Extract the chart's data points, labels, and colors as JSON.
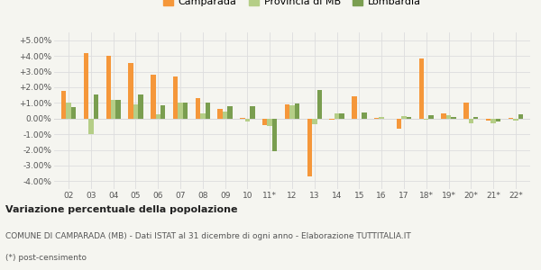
{
  "categories": [
    "02",
    "03",
    "04",
    "05",
    "06",
    "07",
    "08",
    "09",
    "10",
    "11*",
    "12",
    "13",
    "14",
    "15",
    "16",
    "17",
    "18*",
    "19*",
    "20*",
    "21*",
    "22*"
  ],
  "camparada": [
    1.75,
    4.2,
    4.0,
    3.55,
    2.8,
    2.7,
    1.3,
    0.6,
    0.05,
    -0.4,
    0.9,
    -3.7,
    -0.05,
    1.4,
    0.05,
    -0.65,
    3.85,
    0.35,
    1.0,
    -0.15,
    0.05
  ],
  "provincia_mb": [
    1.0,
    -1.0,
    1.2,
    0.9,
    0.25,
    1.0,
    0.35,
    0.45,
    -0.2,
    -0.45,
    0.85,
    -0.35,
    0.3,
    0.0,
    0.1,
    0.15,
    -0.1,
    0.2,
    -0.3,
    -0.3,
    -0.15
  ],
  "lombardia": [
    0.75,
    1.55,
    1.2,
    1.55,
    0.85,
    1.0,
    1.0,
    0.8,
    0.8,
    -2.1,
    0.95,
    1.85,
    0.3,
    0.4,
    0.0,
    0.1,
    0.2,
    0.1,
    0.1,
    -0.2,
    0.25
  ],
  "color_camparada": "#f5973a",
  "color_provincia": "#b5ce87",
  "color_lombardia": "#7a9e50",
  "title": "Variazione percentuale della popolazione",
  "subtitle1": "COMUNE DI CAMPARADA (MB) - Dati ISTAT al 31 dicembre di ogni anno - Elaborazione TUTTITALIA.IT",
  "subtitle2": "(*) post-censimento",
  "ylim": [
    -4.5,
    5.5
  ],
  "yticks": [
    -4.0,
    -3.0,
    -2.0,
    -1.0,
    0.0,
    1.0,
    2.0,
    3.0,
    4.0,
    5.0
  ],
  "ytick_labels": [
    "-4.00%",
    "-3.00%",
    "-2.00%",
    "-1.00%",
    "0.00%",
    "+1.00%",
    "+2.00%",
    "+3.00%",
    "+4.00%",
    "+5.00%"
  ],
  "bg_color": "#f5f5f0",
  "grid_color": "#dddddd"
}
